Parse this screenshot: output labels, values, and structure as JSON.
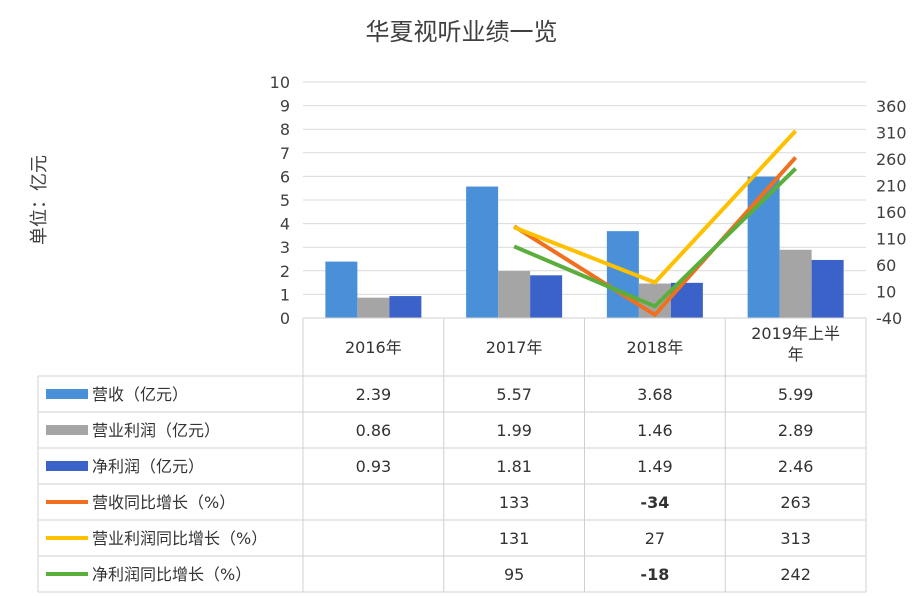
{
  "chart_data": {
    "type": "bar",
    "title": "华夏视听业绩一览",
    "ylabel": "单位：亿元",
    "categories": [
      "2016年",
      "2017年",
      "2018年",
      "2019年上半年"
    ],
    "ylim": [
      0,
      10
    ],
    "y_ticks": [
      "0",
      "1",
      "2",
      "3",
      "4",
      "5",
      "6",
      "7",
      "8",
      "9",
      "10"
    ],
    "y2lim": [
      -40,
      360
    ],
    "y2_ticks": [
      "-40",
      "10",
      "60",
      "110",
      "160",
      "210",
      "260",
      "310",
      "360"
    ],
    "grid": true,
    "legend": "data-table",
    "series": [
      {
        "name": "营收（亿元）",
        "kind": "bar",
        "axis": "left",
        "color": "#4A90D9",
        "values": [
          2.39,
          5.57,
          3.68,
          5.99
        ],
        "labels": [
          "2.39",
          "5.57",
          "3.68",
          "5.99"
        ],
        "bold": [
          false,
          false,
          false,
          false
        ]
      },
      {
        "name": "营业利润（亿元）",
        "kind": "bar",
        "axis": "left",
        "color": "#A5A5A5",
        "values": [
          0.86,
          1.99,
          1.46,
          2.89
        ],
        "labels": [
          "0.86",
          "1.99",
          "1.46",
          "2.89"
        ],
        "bold": [
          false,
          false,
          false,
          false
        ]
      },
      {
        "name": "净利润（亿元）",
        "kind": "bar",
        "axis": "left",
        "color": "#3A62C8",
        "values": [
          0.93,
          1.81,
          1.49,
          2.46
        ],
        "labels": [
          "0.93",
          "1.81",
          "1.49",
          "2.46"
        ],
        "bold": [
          false,
          false,
          false,
          false
        ]
      },
      {
        "name": "营收同比增长（%）",
        "kind": "line",
        "axis": "right",
        "color": "#F07020",
        "values": [
          null,
          133,
          -34,
          263
        ],
        "labels": [
          "",
          "133",
          "-34",
          "263"
        ],
        "bold": [
          false,
          false,
          true,
          false
        ]
      },
      {
        "name": "营业利润同比增长（%）",
        "kind": "line",
        "axis": "right",
        "color": "#FFC000",
        "values": [
          null,
          131,
          27,
          313
        ],
        "labels": [
          "",
          "131",
          "27",
          "313"
        ],
        "bold": [
          false,
          false,
          false,
          false
        ]
      },
      {
        "name": "净利润同比增长（%）",
        "kind": "line",
        "axis": "right",
        "color": "#5AAE3C",
        "values": [
          null,
          95,
          -18,
          242
        ],
        "labels": [
          "",
          "95",
          "-18",
          "242"
        ],
        "bold": [
          false,
          false,
          true,
          false
        ]
      }
    ]
  }
}
